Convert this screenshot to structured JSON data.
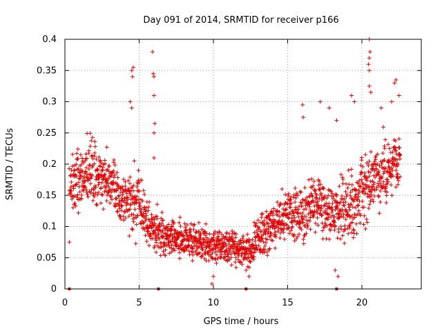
{
  "chart_data": {
    "type": "scatter",
    "title": "Day 091 of 2014, SRMTID for receiver p166",
    "xlabel": "GPS time / hours",
    "ylabel": "SRMTID / TECUs",
    "xlim": [
      0,
      24
    ],
    "ylim": [
      0,
      0.4
    ],
    "grid": true,
    "marker": "+",
    "marker_color": "#e00000",
    "x_ticks": [
      0,
      5,
      10,
      15,
      20
    ],
    "x_tick_labels": [
      "0",
      "5",
      "10",
      "15",
      "20"
    ],
    "y_ticks": [
      0,
      0.05,
      0.1,
      0.15,
      0.2,
      0.25,
      0.3,
      0.35,
      0.4
    ],
    "y_tick_labels": [
      "0",
      "0.05",
      "0.1",
      "0.15",
      "0.2",
      "0.25",
      "0.3",
      "0.35",
      "0.4"
    ],
    "series": [
      {
        "name": "SRMTID",
        "envelope": {
          "x": [
            0.3,
            1,
            2,
            3,
            4,
            4.7,
            5.2,
            6,
            7,
            8,
            9,
            10,
            11,
            12,
            12.5,
            13,
            14,
            15,
            16,
            17,
            18,
            19,
            20,
            21,
            22,
            22.6
          ],
          "y": [
            0.16,
            0.18,
            0.19,
            0.17,
            0.14,
            0.14,
            0.13,
            0.09,
            0.085,
            0.08,
            0.075,
            0.07,
            0.07,
            0.06,
            0.06,
            0.08,
            0.1,
            0.12,
            0.12,
            0.13,
            0.12,
            0.13,
            0.16,
            0.18,
            0.19,
            0.21
          ],
          "spread": [
            0.04,
            0.05,
            0.05,
            0.04,
            0.04,
            0.05,
            0.04,
            0.03,
            0.03,
            0.025,
            0.025,
            0.025,
            0.025,
            0.025,
            0.025,
            0.03,
            0.035,
            0.04,
            0.045,
            0.045,
            0.045,
            0.05,
            0.05,
            0.05,
            0.05,
            0.05
          ]
        },
        "outliers": [
          [
            4.5,
            0.35
          ],
          [
            4.6,
            0.355
          ],
          [
            4.55,
            0.34
          ],
          [
            4.4,
            0.3
          ],
          [
            4.5,
            0.29
          ],
          [
            5.9,
            0.38
          ],
          [
            5.95,
            0.345
          ],
          [
            6.0,
            0.34
          ],
          [
            6.0,
            0.31
          ],
          [
            6.05,
            0.265
          ],
          [
            6.0,
            0.25
          ],
          [
            6.0,
            0.21
          ],
          [
            16.0,
            0.295
          ],
          [
            16.05,
            0.275
          ],
          [
            17.2,
            0.3
          ],
          [
            17.8,
            0.29
          ],
          [
            18.3,
            0.27
          ],
          [
            19.3,
            0.31
          ],
          [
            19.5,
            0.3
          ],
          [
            20.5,
            0.4
          ],
          [
            20.55,
            0.38
          ],
          [
            20.5,
            0.37
          ],
          [
            20.45,
            0.36
          ],
          [
            20.5,
            0.35
          ],
          [
            20.5,
            0.325
          ],
          [
            20.6,
            0.315
          ],
          [
            21.3,
            0.29
          ],
          [
            22.0,
            0.3
          ],
          [
            22.2,
            0.33
          ],
          [
            22.3,
            0.335
          ],
          [
            22.5,
            0.31
          ]
        ],
        "low_points": [
          [
            0.3,
            0.075
          ],
          [
            9.9,
            0.008
          ],
          [
            10.0,
            0.02
          ],
          [
            12.4,
            0.02
          ],
          [
            12.2,
            0.03
          ],
          [
            18.2,
            0.03
          ],
          [
            18.4,
            0.02
          ]
        ]
      }
    ],
    "baseline_markers_x": [
      0.3,
      6.3,
      12.2,
      18.3
    ]
  }
}
